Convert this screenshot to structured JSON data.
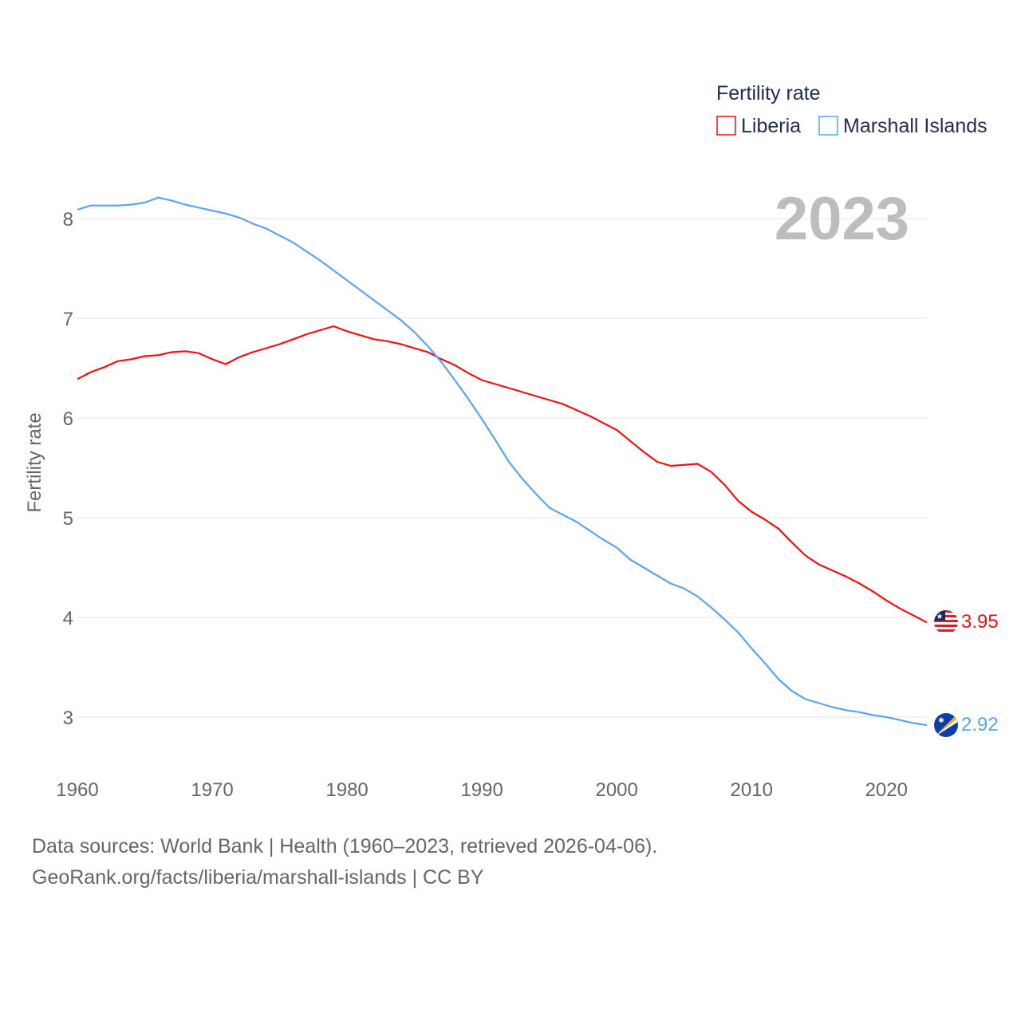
{
  "chart_data": {
    "type": "line",
    "title": "",
    "legend_title": "Fertility rate",
    "legend_placement": "top-right",
    "ylabel": "Fertility rate",
    "xlabel": "",
    "year_label": "2023",
    "xlim": [
      1960,
      2023
    ],
    "ylim": [
      2.5,
      8.4
    ],
    "xticks": [
      1960,
      1970,
      1980,
      1990,
      2000,
      2010,
      2020
    ],
    "yticks": [
      3,
      4,
      5,
      6,
      7,
      8
    ],
    "grid": true,
    "x": [
      1960,
      1961,
      1962,
      1963,
      1964,
      1965,
      1966,
      1967,
      1968,
      1969,
      1970,
      1971,
      1972,
      1973,
      1974,
      1975,
      1976,
      1977,
      1978,
      1979,
      1980,
      1981,
      1982,
      1983,
      1984,
      1985,
      1986,
      1987,
      1988,
      1989,
      1990,
      1991,
      1992,
      1993,
      1994,
      1995,
      1996,
      1997,
      1998,
      1999,
      2000,
      2001,
      2002,
      2003,
      2004,
      2005,
      2006,
      2007,
      2008,
      2009,
      2010,
      2011,
      2012,
      2013,
      2014,
      2015,
      2016,
      2017,
      2018,
      2019,
      2020,
      2021,
      2022,
      2023
    ],
    "series": [
      {
        "name": "Liberia",
        "color": "#ee1111",
        "end_label": "3.95",
        "values": [
          6.39,
          6.46,
          6.51,
          6.57,
          6.59,
          6.62,
          6.63,
          6.66,
          6.67,
          6.65,
          6.59,
          6.54,
          6.61,
          6.66,
          6.7,
          6.74,
          6.79,
          6.84,
          6.88,
          6.92,
          6.87,
          6.83,
          6.79,
          6.77,
          6.74,
          6.7,
          6.66,
          6.59,
          6.53,
          6.45,
          6.38,
          6.34,
          6.3,
          6.26,
          6.22,
          6.18,
          6.14,
          6.08,
          6.02,
          5.95,
          5.88,
          5.77,
          5.66,
          5.56,
          5.52,
          5.53,
          5.54,
          5.46,
          5.33,
          5.17,
          5.06,
          4.98,
          4.89,
          4.75,
          4.62,
          4.53,
          4.47,
          4.41,
          4.34,
          4.26,
          4.17,
          4.09,
          4.02,
          3.95
        ]
      },
      {
        "name": "Marshall Islands",
        "color": "#5aa5ee",
        "end_label": "2.92",
        "values": [
          8.09,
          8.13,
          8.13,
          8.13,
          8.14,
          8.16,
          8.21,
          8.18,
          8.14,
          8.11,
          8.08,
          8.05,
          8.01,
          7.95,
          7.9,
          7.83,
          7.76,
          7.67,
          7.58,
          7.48,
          7.38,
          7.28,
          7.18,
          7.08,
          6.98,
          6.86,
          6.72,
          6.56,
          6.38,
          6.19,
          5.99,
          5.78,
          5.56,
          5.39,
          5.24,
          5.1,
          5.03,
          4.96,
          4.87,
          4.78,
          4.7,
          4.58,
          4.5,
          4.42,
          4.34,
          4.29,
          4.21,
          4.1,
          3.98,
          3.85,
          3.69,
          3.54,
          3.38,
          3.26,
          3.18,
          3.14,
          3.1,
          3.07,
          3.05,
          3.02,
          3.0,
          2.97,
          2.94,
          2.92
        ]
      }
    ]
  },
  "footer": {
    "line1": "Data sources: World Bank | Health (1960–2023, retrieved 2026-04-06).",
    "line2": "GeoRank.org/facts/liberia/marshall-islands | CC BY"
  }
}
